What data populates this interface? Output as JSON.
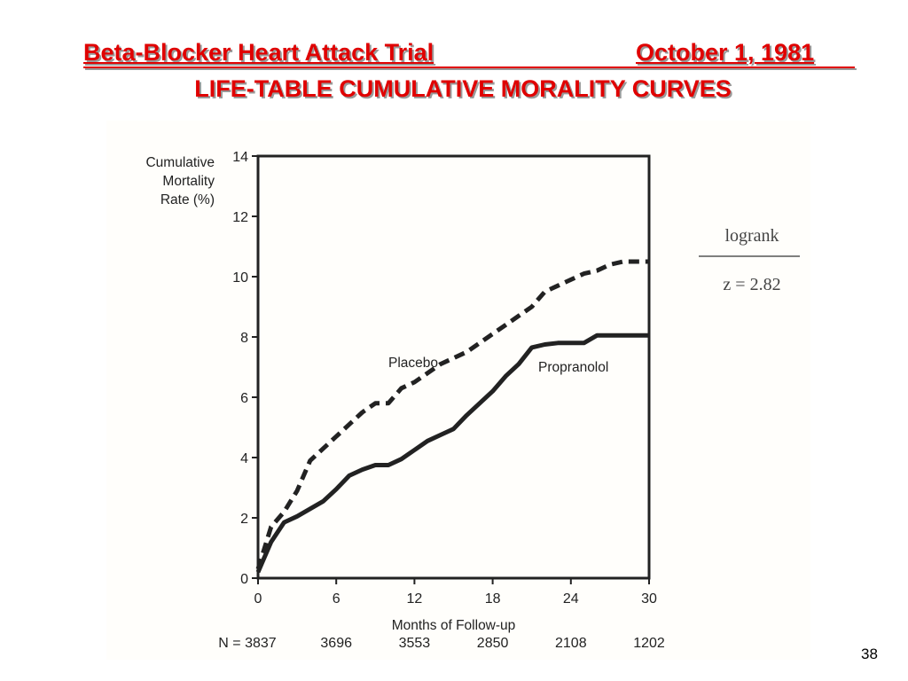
{
  "slide": {
    "title_left": "Beta-Blocker Heart Attack Trial",
    "title_right": "October 1, 1981",
    "subtitle": "LIFE-TABLE CUMULATIVE MORALITY CURVES",
    "page_number": "38"
  },
  "colors": {
    "title": "#e00000",
    "ink": "#222222"
  },
  "chart_data": {
    "type": "line",
    "title": "",
    "ylabel_lines": [
      "Cumulative",
      "Mortality",
      "Rate (%)"
    ],
    "xlabel": "Months of Follow-up",
    "xlim": [
      0,
      30
    ],
    "ylim": [
      0,
      14
    ],
    "xticks": [
      0,
      6,
      12,
      18,
      24,
      30
    ],
    "yticks": [
      0,
      2,
      4,
      6,
      8,
      10,
      12,
      14
    ],
    "grid": false,
    "series": [
      {
        "name": "Placebo",
        "style": "dashed",
        "points": [
          [
            0,
            0.3
          ],
          [
            1,
            1.7
          ],
          [
            2,
            2.2
          ],
          [
            3,
            2.9
          ],
          [
            4,
            3.9
          ],
          [
            5,
            4.3
          ],
          [
            6,
            4.7
          ],
          [
            7,
            5.1
          ],
          [
            8,
            5.5
          ],
          [
            9,
            5.8
          ],
          [
            10,
            5.8
          ],
          [
            11,
            6.3
          ],
          [
            12,
            6.5
          ],
          [
            13,
            6.8
          ],
          [
            14,
            7.1
          ],
          [
            15,
            7.3
          ],
          [
            16,
            7.5
          ],
          [
            17,
            7.8
          ],
          [
            18,
            8.1
          ],
          [
            19,
            8.4
          ],
          [
            20,
            8.7
          ],
          [
            21,
            9.0
          ],
          [
            22,
            9.5
          ],
          [
            23,
            9.7
          ],
          [
            24,
            9.9
          ],
          [
            25,
            10.1
          ],
          [
            26,
            10.2
          ],
          [
            27,
            10.4
          ],
          [
            28,
            10.5
          ],
          [
            29,
            10.5
          ],
          [
            30,
            10.5
          ]
        ]
      },
      {
        "name": "Propranolol",
        "style": "solid",
        "points": [
          [
            0,
            0.2
          ],
          [
            1,
            1.2
          ],
          [
            2,
            1.85
          ],
          [
            3,
            2.05
          ],
          [
            4,
            2.3
          ],
          [
            5,
            2.55
          ],
          [
            6,
            2.95
          ],
          [
            7,
            3.4
          ],
          [
            8,
            3.6
          ],
          [
            9,
            3.75
          ],
          [
            10,
            3.75
          ],
          [
            11,
            3.95
          ],
          [
            12,
            4.25
          ],
          [
            13,
            4.55
          ],
          [
            14,
            4.75
          ],
          [
            15,
            4.95
          ],
          [
            16,
            5.4
          ],
          [
            17,
            5.8
          ],
          [
            18,
            6.2
          ],
          [
            19,
            6.7
          ],
          [
            20,
            7.1
          ],
          [
            21,
            7.65
          ],
          [
            22,
            7.75
          ],
          [
            23,
            7.8
          ],
          [
            24,
            7.8
          ],
          [
            25,
            7.8
          ],
          [
            26,
            8.05
          ],
          [
            27,
            8.05
          ],
          [
            28,
            8.05
          ],
          [
            29,
            8.05
          ],
          [
            30,
            8.05
          ]
        ]
      }
    ],
    "n_at_risk": {
      "prefix": "N = ",
      "months": [
        0,
        6,
        12,
        18,
        24,
        30
      ],
      "values": [
        "3837",
        "3696",
        "3553",
        "2850",
        "2108",
        "1202"
      ]
    },
    "annotation": {
      "test": "logrank",
      "statistic": "z = 2.82"
    }
  }
}
